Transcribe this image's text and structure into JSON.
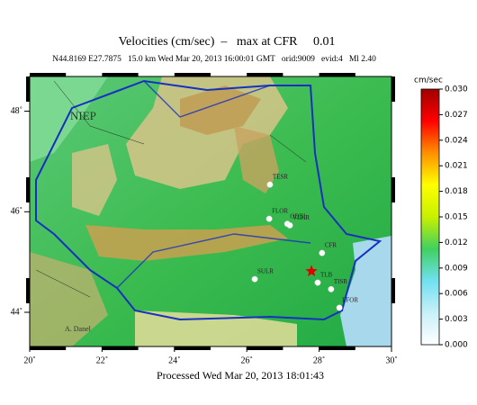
{
  "chart_data": {
    "type": "map",
    "title": "Velocities (cm/sec)  –   max at CFR     0.01",
    "subtitle": "N44.8169 E27.7875   15.0 km Wed Mar 20, 2013 16:00:01 GMT   orid:9009   evid:4   Ml 2.40",
    "footer": "Processed  Wed Mar 20, 2013 18:01:43",
    "region_labels": [
      "NIEP",
      "A. Danel"
    ],
    "xlim": [
      20,
      30
    ],
    "ylim": [
      43.32,
      48.69
    ],
    "xticks": [
      {
        "value": 20,
        "label": "20˚"
      },
      {
        "value": 22,
        "label": "22˚"
      },
      {
        "value": 24,
        "label": "24˚"
      },
      {
        "value": 26,
        "label": "26˚"
      },
      {
        "value": 28,
        "label": "28˚"
      },
      {
        "value": 30,
        "label": "30˚"
      }
    ],
    "yticks": [
      {
        "value": 44,
        "label": "44˚"
      },
      {
        "value": 46,
        "label": "46˚"
      },
      {
        "value": 48,
        "label": "48˚"
      }
    ],
    "epicenter": {
      "lon": 27.7875,
      "lat": 44.8169,
      "color": "#e00000"
    },
    "stations": {
      "names": [
        "TESR",
        "FLOR",
        "ODBI",
        "VLHR",
        "CFR",
        "SULR",
        "TLB",
        "TISR",
        "EFOR"
      ],
      "lon": [
        26.64,
        26.62,
        27.12,
        27.19,
        28.08,
        26.22,
        27.96,
        28.33,
        28.56
      ],
      "lat": [
        46.54,
        45.86,
        45.76,
        45.73,
        45.18,
        44.66,
        44.59,
        44.46,
        44.09
      ],
      "color": "#ffffff"
    },
    "colorbar": {
      "label": "cm/sec",
      "lim": [
        0,
        0.03
      ],
      "colors": [
        "#ffffff",
        "#c8f0f8",
        "#70e0f0",
        "#40d060",
        "#c8f000",
        "#ffff00",
        "#ff9000",
        "#ff0000",
        "#a00000"
      ],
      "ticks": [
        {
          "value": 0,
          "label": "0.000"
        },
        0.003,
        0.006,
        0.009,
        0.012,
        0.015,
        0.018,
        0.021,
        0.024,
        0.027,
        {
          "value": 0.03,
          "label": "0.030"
        }
      ]
    }
  }
}
